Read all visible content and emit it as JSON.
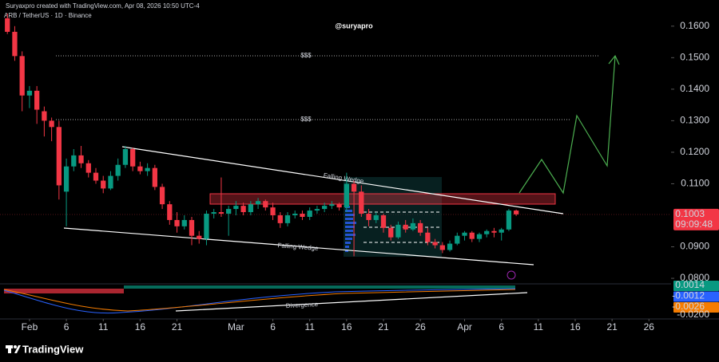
{
  "chart_data": {
    "type": "candlestick",
    "header": "Suryaxpro created with TradingView.com, Apr 08, 2026 10:50 UTC-4",
    "symbol": "ARB / TetherUS · 1D · Binance",
    "watermark": "@suryapro",
    "brand": "TradingView",
    "up_color": "#089981",
    "down_color": "#f23645",
    "open": [
      0.1625,
      0.1582,
      0.1505,
      0.138,
      0.1395,
      0.133,
      0.13,
      0.128,
      0.1075,
      0.1155,
      0.119,
      0.1165,
      0.1135,
      0.111,
      0.1085,
      0.1125,
      0.116,
      0.121,
      0.1155,
      0.114,
      0.115,
      0.109,
      0.1035,
      0.0985,
      0.0965,
      0.0985,
      0.0935,
      0.0925,
      0.1005,
      0.101,
      0.1005,
      0.102,
      0.103,
      0.101,
      0.1035,
      0.1045,
      0.1025,
      0.1,
      0.0975,
      0.1,
      0.1005,
      0.0995,
      0.1015,
      0.102,
      0.103,
      0.1035,
      0.1025,
      0.11,
      0.1075,
      0.1005,
      0.0985,
      0.1,
      0.096,
      0.093,
      0.097,
      0.0955,
      0.0975,
      0.0945,
      0.0915,
      0.0905,
      0.089,
      0.091,
      0.0935,
      0.0945,
      0.0925,
      0.094,
      0.095,
      0.0945,
      0.0955,
      0.1015
    ],
    "high": [
      0.164,
      0.16,
      0.152,
      0.141,
      0.141,
      0.1345,
      0.131,
      0.13,
      0.118,
      0.121,
      0.122,
      0.1175,
      0.115,
      0.1125,
      0.114,
      0.118,
      0.122,
      0.1215,
      0.117,
      0.1165,
      0.116,
      0.11,
      0.1045,
      0.101,
      0.1,
      0.0995,
      0.095,
      0.1015,
      0.102,
      0.112,
      0.103,
      0.1045,
      0.104,
      0.1045,
      0.1055,
      0.105,
      0.104,
      0.101,
      0.101,
      0.1015,
      0.1015,
      0.1025,
      0.103,
      0.104,
      0.1045,
      0.104,
      0.1135,
      0.111,
      0.1095,
      0.102,
      0.101,
      0.1005,
      0.097,
      0.098,
      0.0985,
      0.099,
      0.0985,
      0.096,
      0.0925,
      0.0915,
      0.092,
      0.0945,
      0.095,
      0.095,
      0.0945,
      0.0955,
      0.096,
      0.096,
      0.102,
      0.1018
    ],
    "low": [
      0.1575,
      0.149,
      0.133,
      0.134,
      0.129,
      0.125,
      0.1235,
      0.105,
      0.0965,
      0.114,
      0.115,
      0.112,
      0.11,
      0.107,
      0.108,
      0.111,
      0.115,
      0.114,
      0.113,
      0.1125,
      0.108,
      0.102,
      0.097,
      0.0945,
      0.0955,
      0.0905,
      0.091,
      0.0905,
      0.099,
      0.0995,
      0.0935,
      0.1,
      0.1,
      0.1,
      0.102,
      0.1015,
      0.0985,
      0.096,
      0.0965,
      0.099,
      0.0985,
      0.0985,
      0.1005,
      0.101,
      0.102,
      0.1015,
      0.101,
      0.087,
      0.0995,
      0.0965,
      0.0975,
      0.0945,
      0.092,
      0.0925,
      0.0945,
      0.095,
      0.0935,
      0.0905,
      0.0895,
      0.088,
      0.0885,
      0.0905,
      0.092,
      0.0915,
      0.0915,
      0.093,
      0.093,
      0.092,
      0.095,
      0.0998
    ],
    "close": [
      0.1582,
      0.1505,
      0.138,
      0.1395,
      0.1335,
      0.13,
      0.128,
      0.1095,
      0.1155,
      0.119,
      0.1165,
      0.1135,
      0.111,
      0.1085,
      0.1125,
      0.116,
      0.121,
      0.1155,
      0.114,
      0.115,
      0.109,
      0.1035,
      0.0985,
      0.0965,
      0.0985,
      0.0935,
      0.0925,
      0.1005,
      0.101,
      0.1005,
      0.102,
      0.103,
      0.101,
      0.1035,
      0.1045,
      0.1025,
      0.1,
      0.0975,
      0.1,
      0.1005,
      0.0995,
      0.1015,
      0.102,
      0.103,
      0.1035,
      0.1025,
      0.11,
      0.1075,
      0.1005,
      0.0985,
      0.1,
      0.096,
      0.093,
      0.097,
      0.0955,
      0.0975,
      0.0945,
      0.0915,
      0.0905,
      0.089,
      0.091,
      0.0935,
      0.0945,
      0.0925,
      0.094,
      0.095,
      0.0945,
      0.0955,
      0.1015,
      0.1003
    ],
    "countdown": "09:09:48",
    "xlim": [
      -1,
      90
    ],
    "xticks": [
      {
        "value": 3,
        "label": "Feb"
      },
      {
        "value": 8,
        "label": "6"
      },
      {
        "value": 13,
        "label": "11"
      },
      {
        "value": 18,
        "label": "16"
      },
      {
        "value": 23,
        "label": "21"
      },
      {
        "value": 31,
        "label": "Mar"
      },
      {
        "value": 36,
        "label": "6"
      },
      {
        "value": 41,
        "label": "11"
      },
      {
        "value": 46,
        "label": "16"
      },
      {
        "value": 51,
        "label": "21"
      },
      {
        "value": 56,
        "label": "26"
      },
      {
        "value": 62,
        "label": "Apr"
      },
      {
        "value": 67,
        "label": "6"
      },
      {
        "value": 72,
        "label": "11"
      },
      {
        "value": 77,
        "label": "16"
      },
      {
        "value": 82,
        "label": "21"
      },
      {
        "value": 87,
        "label": "26"
      }
    ],
    "ylim": [
      0.0785,
      0.1645
    ],
    "yticks": [
      {
        "value": 0.08,
        "label": "0.0800"
      },
      {
        "value": 0.09,
        "label": "0.0900"
      },
      {
        "value": 0.11,
        "label": "0.1100"
      },
      {
        "value": 0.12,
        "label": "0.1200"
      },
      {
        "value": 0.13,
        "label": "0.1300"
      },
      {
        "value": 0.14,
        "label": "0.1400"
      },
      {
        "value": 0.15,
        "label": "0.1500"
      },
      {
        "value": 0.16,
        "label": "0.1600"
      }
    ],
    "annotations": {
      "wedge_upper": "Falling Wedge",
      "wedge_lower": "Falling Wedge",
      "target_1": "$$$",
      "target_2": "$$$",
      "divergence": "Divergence"
    },
    "indicator": {
      "labels": [
        {
          "value": 0.0014,
          "color": "#089981"
        },
        {
          "value": -0.0012,
          "color": "#2962ff"
        },
        {
          "value": -0.0026,
          "color": "#f57c00"
        }
      ],
      "yticks": [
        {
          "value": -0.02,
          "label": "-0.0200"
        }
      ]
    }
  }
}
